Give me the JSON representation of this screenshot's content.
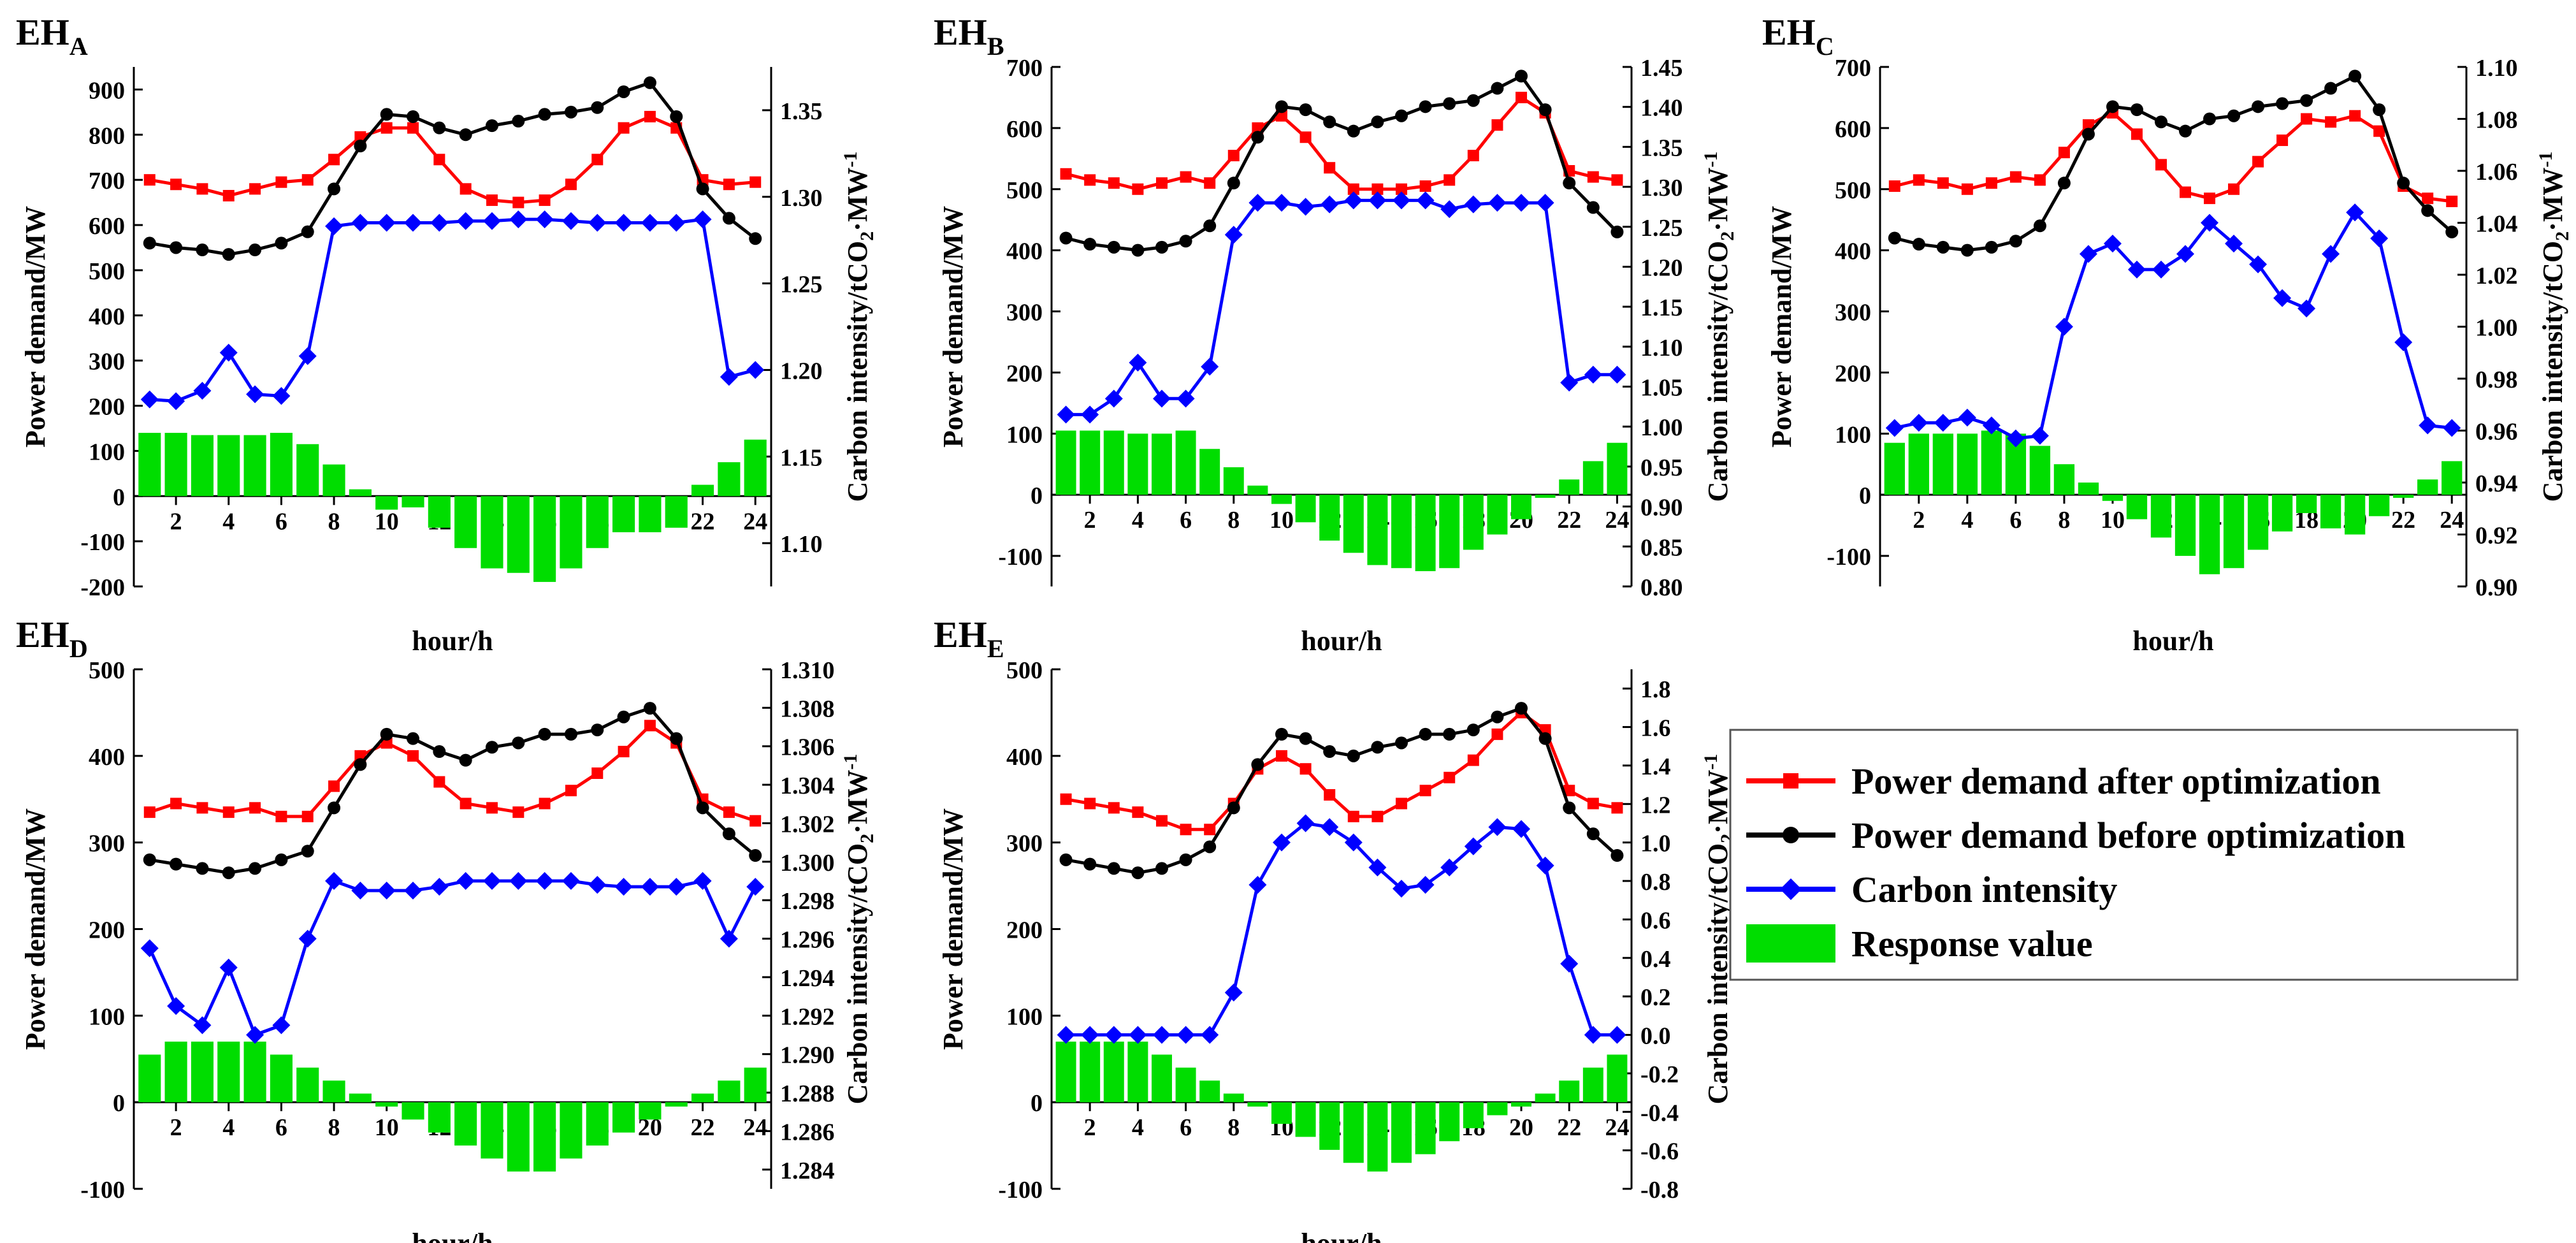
{
  "colors": {
    "after": "#ff0000",
    "before": "#000000",
    "carbon": "#0000ff",
    "response": "#00dd00"
  },
  "legend": {
    "after": "Power demand after optimization",
    "before": "Power demand before optimization",
    "carbon": "Carbon intensity",
    "response": "Response value"
  },
  "chart_data": [
    {
      "type": "bar+line",
      "title": "EH",
      "title_sub": "A",
      "xlabel": "hour/h",
      "ylabel": "Power demand/MW",
      "y2label": "Carbon intensity/tCO",
      "y2label_sub": "2",
      "y2label_tail": "·MW",
      "y2label_sup": "-1",
      "x": [
        1,
        2,
        3,
        4,
        5,
        6,
        7,
        8,
        9,
        10,
        11,
        12,
        13,
        14,
        15,
        16,
        17,
        18,
        19,
        20,
        21,
        22,
        23,
        24
      ],
      "xticks": [
        2,
        4,
        6,
        8,
        10,
        12,
        14,
        16,
        18,
        20,
        22,
        24
      ],
      "ylim": [
        -200,
        950
      ],
      "yticks": [
        -200,
        -100,
        0,
        100,
        200,
        300,
        400,
        500,
        600,
        700,
        800,
        900
      ],
      "y2lim": [
        1.075,
        1.375
      ],
      "y2ticks": [
        1.1,
        1.15,
        1.2,
        1.25,
        1.3,
        1.35
      ],
      "y2tick_labels": [
        "1.10",
        "1.15",
        "1.20",
        "1.25",
        "1.30",
        "1.35"
      ],
      "series": [
        {
          "key": "after",
          "axis": "left",
          "marker": "square",
          "values": [
            700,
            690,
            680,
            665,
            680,
            695,
            700,
            745,
            795,
            815,
            815,
            745,
            680,
            655,
            650,
            655,
            690,
            745,
            815,
            840,
            815,
            700,
            690,
            695
          ]
        },
        {
          "key": "before",
          "axis": "left",
          "marker": "circle",
          "values": [
            560,
            550,
            545,
            535,
            545,
            560,
            585,
            680,
            775,
            845,
            840,
            815,
            800,
            820,
            830,
            845,
            850,
            860,
            895,
            915,
            840,
            680,
            615,
            570
          ]
        },
        {
          "key": "carbon",
          "axis": "right",
          "marker": "diamond",
          "values": [
            1.183,
            1.182,
            1.188,
            1.21,
            1.186,
            1.185,
            1.208,
            1.283,
            1.285,
            1.285,
            1.285,
            1.285,
            1.286,
            1.286,
            1.287,
            1.287,
            1.286,
            1.285,
            1.285,
            1.285,
            1.285,
            1.287,
            1.196,
            1.2
          ]
        },
        {
          "key": "response",
          "axis": "left",
          "bar": true,
          "values": [
            140,
            140,
            135,
            135,
            135,
            140,
            115,
            70,
            15,
            -30,
            -25,
            -70,
            -115,
            -160,
            -170,
            -190,
            -160,
            -115,
            -80,
            -80,
            -70,
            25,
            75,
            125
          ]
        }
      ]
    },
    {
      "type": "bar+line",
      "title": "EH",
      "title_sub": "B",
      "xlabel": "hour/h",
      "ylabel": "Power demand/MW",
      "y2label": "Carbon intensity/tCO",
      "y2label_sub": "2",
      "y2label_tail": "·MW",
      "y2label_sup": "-1",
      "x": [
        1,
        2,
        3,
        4,
        5,
        6,
        7,
        8,
        9,
        10,
        11,
        12,
        13,
        14,
        15,
        16,
        17,
        18,
        19,
        20,
        21,
        22,
        23,
        24
      ],
      "xticks": [
        2,
        4,
        6,
        8,
        10,
        12,
        14,
        16,
        18,
        20,
        22,
        24
      ],
      "ylim": [
        -150,
        700
      ],
      "yticks": [
        -100,
        0,
        100,
        200,
        300,
        400,
        500,
        600,
        700
      ],
      "y2lim": [
        0.8,
        1.45
      ],
      "y2ticks": [
        0.8,
        0.85,
        0.9,
        0.95,
        1.0,
        1.05,
        1.1,
        1.15,
        1.2,
        1.25,
        1.3,
        1.35,
        1.4,
        1.45
      ],
      "y2tick_labels": [
        "0.80",
        "0.85",
        "0.90",
        "0.95",
        "1.00",
        "1.05",
        "1.10",
        "1.15",
        "1.20",
        "1.25",
        "1.30",
        "1.35",
        "1.40",
        "1.45"
      ],
      "series": [
        {
          "key": "after",
          "axis": "left",
          "marker": "square",
          "values": [
            525,
            515,
            510,
            500,
            510,
            520,
            510,
            555,
            600,
            620,
            585,
            535,
            500,
            500,
            500,
            505,
            515,
            555,
            605,
            650,
            625,
            530,
            520,
            515
          ]
        },
        {
          "key": "before",
          "axis": "left",
          "marker": "circle",
          "values": [
            420,
            410,
            405,
            400,
            405,
            415,
            440,
            510,
            585,
            635,
            630,
            610,
            595,
            610,
            620,
            635,
            640,
            645,
            665,
            685,
            630,
            510,
            470,
            430
          ]
        },
        {
          "key": "carbon",
          "axis": "right",
          "marker": "diamond",
          "values": [
            1.015,
            1.015,
            1.035,
            1.08,
            1.035,
            1.035,
            1.075,
            1.24,
            1.28,
            1.28,
            1.275,
            1.278,
            1.283,
            1.283,
            1.283,
            1.283,
            1.272,
            1.278,
            1.28,
            1.28,
            1.28,
            1.055,
            1.065,
            1.065
          ]
        },
        {
          "key": "response",
          "axis": "left",
          "bar": true,
          "values": [
            105,
            105,
            105,
            100,
            100,
            105,
            75,
            45,
            15,
            -15,
            -45,
            -75,
            -95,
            -115,
            -120,
            -125,
            -120,
            -90,
            -65,
            -40,
            -5,
            25,
            55,
            85
          ]
        }
      ]
    },
    {
      "type": "bar+line",
      "title": "EH",
      "title_sub": "C",
      "xlabel": "hour/h",
      "ylabel": "Power demand/MW",
      "y2label": "Carbon intensity/tCO",
      "y2label_sub": "2",
      "y2label_tail": "·MW",
      "y2label_sup": "-1",
      "x": [
        1,
        2,
        3,
        4,
        5,
        6,
        7,
        8,
        9,
        10,
        11,
        12,
        13,
        14,
        15,
        16,
        17,
        18,
        19,
        20,
        21,
        22,
        23,
        24
      ],
      "xticks": [
        2,
        4,
        6,
        8,
        10,
        12,
        14,
        16,
        18,
        20,
        22,
        24
      ],
      "ylim": [
        -150,
        700
      ],
      "yticks": [
        -100,
        0,
        100,
        200,
        300,
        400,
        500,
        600,
        700
      ],
      "y2lim": [
        0.9,
        1.1
      ],
      "y2ticks": [
        0.9,
        0.92,
        0.94,
        0.96,
        0.98,
        1.0,
        1.02,
        1.04,
        1.06,
        1.08,
        1.1
      ],
      "y2tick_labels": [
        "0.90",
        "0.92",
        "0.94",
        "0.96",
        "0.98",
        "1.00",
        "1.02",
        "1.04",
        "1.06",
        "1.08",
        "1.10"
      ],
      "series": [
        {
          "key": "after",
          "axis": "left",
          "marker": "square",
          "values": [
            505,
            515,
            510,
            500,
            510,
            520,
            515,
            560,
            605,
            625,
            590,
            540,
            495,
            485,
            500,
            545,
            580,
            615,
            610,
            620,
            595,
            505,
            485,
            480
          ]
        },
        {
          "key": "before",
          "axis": "left",
          "marker": "circle",
          "values": [
            420,
            410,
            405,
            400,
            405,
            415,
            440,
            510,
            590,
            635,
            630,
            610,
            595,
            615,
            620,
            635,
            640,
            645,
            665,
            685,
            630,
            510,
            465,
            430
          ]
        },
        {
          "key": "carbon",
          "axis": "right",
          "marker": "diamond",
          "values": [
            0.961,
            0.963,
            0.963,
            0.965,
            0.962,
            0.957,
            0.958,
            1.0,
            1.028,
            1.032,
            1.022,
            1.022,
            1.028,
            1.04,
            1.032,
            1.024,
            1.011,
            1.007,
            1.028,
            1.044,
            1.034,
            0.994,
            0.962,
            0.961
          ]
        },
        {
          "key": "response",
          "axis": "left",
          "bar": true,
          "values": [
            85,
            100,
            100,
            100,
            105,
            100,
            80,
            50,
            20,
            -10,
            -40,
            -70,
            -100,
            -130,
            -120,
            -90,
            -60,
            -30,
            -55,
            -65,
            -35,
            -5,
            25,
            55
          ]
        }
      ]
    },
    {
      "type": "bar+line",
      "title": "EH",
      "title_sub": "D",
      "xlabel": "hour/h",
      "ylabel": "Power demand/MW",
      "y2label": "Carbon intensity/tCO",
      "y2label_sub": "2",
      "y2label_tail": "·MW",
      "y2label_sup": "-1",
      "x": [
        1,
        2,
        3,
        4,
        5,
        6,
        7,
        8,
        9,
        10,
        11,
        12,
        13,
        14,
        15,
        16,
        17,
        18,
        19,
        20,
        21,
        22,
        23,
        24
      ],
      "xticks": [
        2,
        4,
        6,
        8,
        10,
        12,
        14,
        16,
        18,
        20,
        22,
        24
      ],
      "ylim": [
        -100,
        500
      ],
      "yticks": [
        -100,
        0,
        100,
        200,
        300,
        400,
        500
      ],
      "y2lim": [
        1.283,
        1.31
      ],
      "y2ticks": [
        1.284,
        1.286,
        1.288,
        1.29,
        1.292,
        1.294,
        1.296,
        1.298,
        1.3,
        1.302,
        1.304,
        1.306,
        1.308,
        1.31
      ],
      "y2tick_labels": [
        "1.284",
        "1.286",
        "1.288",
        "1.290",
        "1.292",
        "1.294",
        "1.296",
        "1.298",
        "1.300",
        "1.302",
        "1.304",
        "1.306",
        "1.308",
        "1.310"
      ],
      "series": [
        {
          "key": "after",
          "axis": "left",
          "marker": "square",
          "values": [
            335,
            345,
            340,
            335,
            340,
            330,
            330,
            365,
            400,
            415,
            400,
            370,
            345,
            340,
            335,
            345,
            360,
            380,
            405,
            435,
            415,
            350,
            335,
            325
          ]
        },
        {
          "key": "before",
          "axis": "left",
          "marker": "circle",
          "values": [
            280,
            275,
            270,
            265,
            270,
            280,
            290,
            340,
            390,
            425,
            420,
            405,
            395,
            410,
            415,
            425,
            425,
            430,
            445,
            455,
            420,
            340,
            310,
            285
          ]
        },
        {
          "key": "carbon",
          "axis": "right",
          "marker": "diamond",
          "values": [
            1.2955,
            1.2925,
            1.2915,
            1.2945,
            1.291,
            1.2915,
            1.296,
            1.299,
            1.2985,
            1.2985,
            1.2985,
            1.2987,
            1.299,
            1.299,
            1.299,
            1.299,
            1.299,
            1.2988,
            1.2987,
            1.2987,
            1.2987,
            1.299,
            1.296,
            1.2987
          ]
        },
        {
          "key": "response",
          "axis": "left",
          "bar": true,
          "values": [
            55,
            70,
            70,
            70,
            70,
            55,
            40,
            25,
            10,
            -5,
            -20,
            -35,
            -50,
            -65,
            -80,
            -80,
            -65,
            -50,
            -35,
            -20,
            -5,
            10,
            25,
            40
          ]
        }
      ]
    },
    {
      "type": "bar+line",
      "title": "EH",
      "title_sub": "E",
      "xlabel": "hour/h",
      "ylabel": "Power demand/MW",
      "y2label": "Carbon intensity/tCO",
      "y2label_sub": "2",
      "y2label_tail": "·MW",
      "y2label_sup": "-1",
      "x": [
        1,
        2,
        3,
        4,
        5,
        6,
        7,
        8,
        9,
        10,
        11,
        12,
        13,
        14,
        15,
        16,
        17,
        18,
        19,
        20,
        21,
        22,
        23,
        24
      ],
      "xticks": [
        2,
        4,
        6,
        8,
        10,
        12,
        14,
        16,
        18,
        20,
        22,
        24
      ],
      "ylim": [
        -100,
        500
      ],
      "yticks": [
        -100,
        0,
        100,
        200,
        300,
        400,
        500
      ],
      "y2lim": [
        -0.8,
        1.9
      ],
      "y2ticks": [
        -0.8,
        -0.6,
        -0.4,
        -0.2,
        0.0,
        0.2,
        0.4,
        0.6,
        0.8,
        1.0,
        1.2,
        1.4,
        1.6,
        1.8
      ],
      "y2tick_labels": [
        "-0.8",
        "-0.6",
        "-0.4",
        "-0.2",
        "0.0",
        "0.2",
        "0.4",
        "0.6",
        "0.8",
        "1.0",
        "1.2",
        "1.4",
        "1.6",
        "1.8"
      ],
      "series": [
        {
          "key": "after",
          "axis": "left",
          "marker": "square",
          "values": [
            350,
            345,
            340,
            335,
            325,
            315,
            315,
            345,
            385,
            400,
            385,
            355,
            330,
            330,
            345,
            360,
            375,
            395,
            425,
            450,
            430,
            360,
            345,
            340
          ]
        },
        {
          "key": "before",
          "axis": "left",
          "marker": "circle",
          "values": [
            280,
            275,
            270,
            265,
            270,
            280,
            295,
            340,
            390,
            425,
            420,
            405,
            400,
            410,
            415,
            425,
            425,
            430,
            445,
            455,
            420,
            340,
            310,
            285
          ]
        },
        {
          "key": "carbon",
          "axis": "right",
          "marker": "diamond",
          "values": [
            0.0,
            0.0,
            0.0,
            0.0,
            0.0,
            0.0,
            0.0,
            0.22,
            0.78,
            1.0,
            1.1,
            1.08,
            1.0,
            0.87,
            0.76,
            0.78,
            0.87,
            0.98,
            1.08,
            1.07,
            0.88,
            0.37,
            0.0,
            0.0
          ]
        },
        {
          "key": "response",
          "axis": "left",
          "bar": true,
          "values": [
            70,
            70,
            70,
            70,
            55,
            40,
            25,
            10,
            -5,
            -25,
            -40,
            -55,
            -70,
            -80,
            -70,
            -60,
            -45,
            -30,
            -15,
            -5,
            10,
            25,
            40,
            55
          ]
        }
      ]
    }
  ]
}
